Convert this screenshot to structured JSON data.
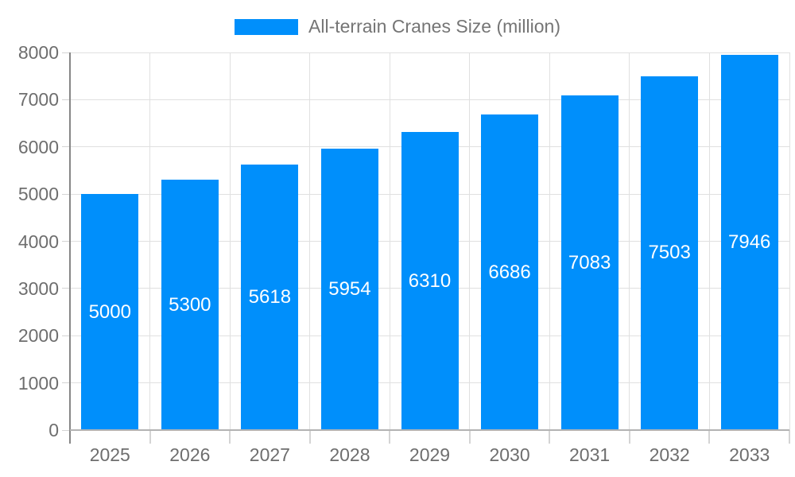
{
  "chart_data": {
    "type": "bar",
    "title": "All-terrain Cranes Size (million)",
    "categories": [
      "2025",
      "2026",
      "2027",
      "2028",
      "2029",
      "2030",
      "2031",
      "2032",
      "2033"
    ],
    "values": [
      5000,
      5300,
      5618,
      5954,
      6310,
      6686,
      7083,
      7503,
      7946
    ],
    "xlabel": "",
    "ylabel": "",
    "ylim": [
      0,
      8000
    ],
    "ytick_step": 1000,
    "yticks": [
      0,
      1000,
      2000,
      3000,
      4000,
      5000,
      6000,
      7000,
      8000
    ],
    "grid": true,
    "legend_position": "top",
    "bar_labels_inside": true,
    "colors": {
      "bar": "#008FFB",
      "bar_label": "#FFFFFF",
      "axis_text": "#6E6E6E",
      "legend_text": "#757575",
      "grid": "#E0E0E0",
      "axis_line": "#878787",
      "baseline": "#B3B3B3",
      "tick": "#D4D4D4",
      "background": "#FFFFFF"
    }
  }
}
